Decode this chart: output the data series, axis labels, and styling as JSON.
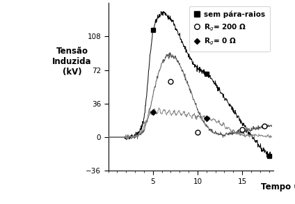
{
  "title": "",
  "xlabel": "Tempo (us)",
  "ylabel": "Tensão\nInduzida\n(kV)",
  "xlim": [
    0,
    18.5
  ],
  "ylim": [
    -36,
    144
  ],
  "yticks": [
    -36,
    0,
    36,
    72,
    108
  ],
  "xticks": [
    5,
    10,
    15
  ],
  "bg_color": "#ffffff",
  "curve1_color": "#000000",
  "curve2_color": "#555555",
  "curve3_color": "#888888"
}
